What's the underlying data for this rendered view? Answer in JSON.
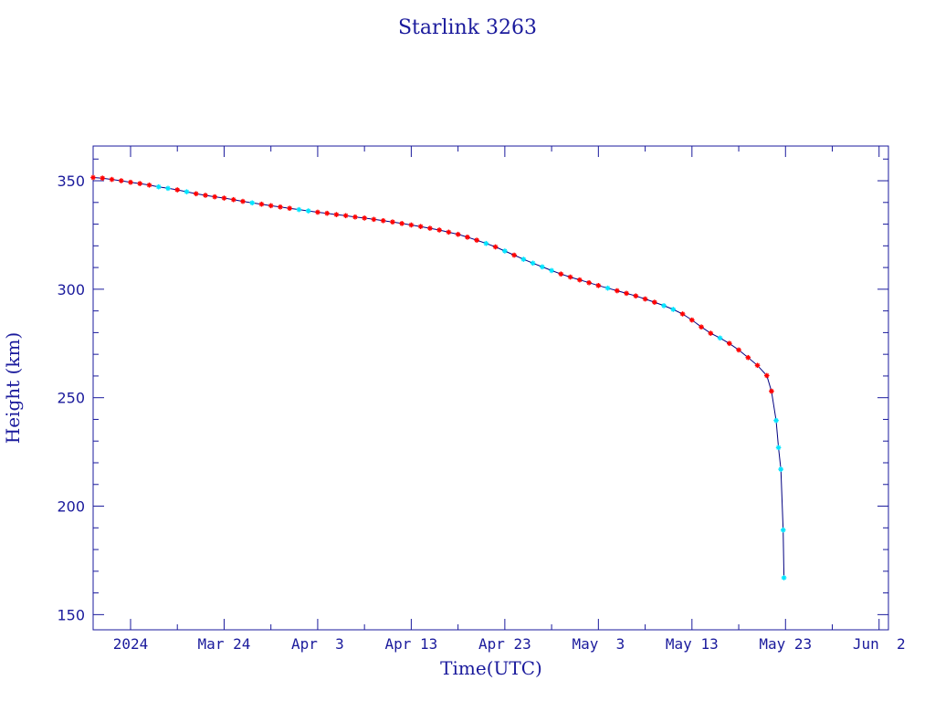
{
  "chart_data": {
    "type": "line",
    "title": "Starlink 3263",
    "xlabel": "Time(UTC)",
    "ylabel": "Height (km)",
    "xlim": [
      "2024-03-10",
      "2024-06-03"
    ],
    "ylim": [
      143,
      366
    ],
    "x_ticks": [
      {
        "date": "2024-03-14",
        "label": "2024"
      },
      {
        "date": "2024-03-24",
        "label": "Mar 24"
      },
      {
        "date": "2024-04-03",
        "label": "Apr  3"
      },
      {
        "date": "2024-04-13",
        "label": "Apr 13"
      },
      {
        "date": "2024-04-23",
        "label": "Apr 23"
      },
      {
        "date": "2024-05-03",
        "label": "May  3"
      },
      {
        "date": "2024-05-13",
        "label": "May 13"
      },
      {
        "date": "2024-05-23",
        "label": "May 23"
      },
      {
        "date": "2024-06-02",
        "label": "Jun  2"
      }
    ],
    "y_ticks": [
      150,
      200,
      250,
      300,
      350
    ],
    "colors": {
      "axis": "#1a1a9c",
      "line": "#000080",
      "red_marker": "#ff0000",
      "cyan_marker": "#00e5ff"
    },
    "series": [
      {
        "values": [
          {
            "x": "2024-03-10",
            "y": 351.5,
            "m": "red"
          },
          {
            "x": "2024-03-11",
            "y": 351.2,
            "m": "red"
          },
          {
            "x": "2024-03-12",
            "y": 350.6,
            "m": "red"
          },
          {
            "x": "2024-03-13",
            "y": 350.0,
            "m": "red"
          },
          {
            "x": "2024-03-14",
            "y": 349.3,
            "m": "red"
          },
          {
            "x": "2024-03-15",
            "y": 348.7,
            "m": "red"
          },
          {
            "x": "2024-03-16",
            "y": 348.0,
            "m": "red"
          },
          {
            "x": "2024-03-17",
            "y": 347.2,
            "m": "cyan"
          },
          {
            "x": "2024-03-18",
            "y": 346.5,
            "m": "cyan"
          },
          {
            "x": "2024-03-19",
            "y": 345.8,
            "m": "red"
          },
          {
            "x": "2024-03-20",
            "y": 344.9,
            "m": "cyan"
          },
          {
            "x": "2024-03-21",
            "y": 344.0,
            "m": "red"
          },
          {
            "x": "2024-03-22",
            "y": 343.3,
            "m": "red"
          },
          {
            "x": "2024-03-23",
            "y": 342.6,
            "m": "red"
          },
          {
            "x": "2024-03-24",
            "y": 342.0,
            "m": "red"
          },
          {
            "x": "2024-03-25",
            "y": 341.3,
            "m": "red"
          },
          {
            "x": "2024-03-26",
            "y": 340.5,
            "m": "red"
          },
          {
            "x": "2024-03-27",
            "y": 339.8,
            "m": "cyan"
          },
          {
            "x": "2024-03-28",
            "y": 339.2,
            "m": "red"
          },
          {
            "x": "2024-03-29",
            "y": 338.5,
            "m": "red"
          },
          {
            "x": "2024-03-30",
            "y": 337.9,
            "m": "red"
          },
          {
            "x": "2024-03-31",
            "y": 337.3,
            "m": "red"
          },
          {
            "x": "2024-04-01",
            "y": 336.7,
            "m": "cyan"
          },
          {
            "x": "2024-04-02",
            "y": 336.1,
            "m": "cyan"
          },
          {
            "x": "2024-04-03",
            "y": 335.5,
            "m": "red"
          },
          {
            "x": "2024-04-04",
            "y": 335.0,
            "m": "red"
          },
          {
            "x": "2024-04-05",
            "y": 334.4,
            "m": "red"
          },
          {
            "x": "2024-04-06",
            "y": 333.9,
            "m": "red"
          },
          {
            "x": "2024-04-07",
            "y": 333.3,
            "m": "red"
          },
          {
            "x": "2024-04-08",
            "y": 332.8,
            "m": "red"
          },
          {
            "x": "2024-04-09",
            "y": 332.2,
            "m": "red"
          },
          {
            "x": "2024-04-10",
            "y": 331.6,
            "m": "red"
          },
          {
            "x": "2024-04-11",
            "y": 331.0,
            "m": "red"
          },
          {
            "x": "2024-04-12",
            "y": 330.3,
            "m": "red"
          },
          {
            "x": "2024-04-13",
            "y": 329.6,
            "m": "red"
          },
          {
            "x": "2024-04-14",
            "y": 328.9,
            "m": "red"
          },
          {
            "x": "2024-04-15",
            "y": 328.1,
            "m": "red"
          },
          {
            "x": "2024-04-16",
            "y": 327.3,
            "m": "red"
          },
          {
            "x": "2024-04-17",
            "y": 326.3,
            "m": "red"
          },
          {
            "x": "2024-04-18",
            "y": 325.3,
            "m": "red"
          },
          {
            "x": "2024-04-19",
            "y": 324.0,
            "m": "red"
          },
          {
            "x": "2024-04-20",
            "y": 322.6,
            "m": "red"
          },
          {
            "x": "2024-04-21",
            "y": 321.1,
            "m": "cyan"
          },
          {
            "x": "2024-04-22",
            "y": 319.5,
            "m": "red"
          },
          {
            "x": "2024-04-23",
            "y": 317.6,
            "m": "cyan"
          },
          {
            "x": "2024-04-24",
            "y": 315.7,
            "m": "red"
          },
          {
            "x": "2024-04-25",
            "y": 313.8,
            "m": "cyan"
          },
          {
            "x": "2024-04-26",
            "y": 312.0,
            "m": "cyan"
          },
          {
            "x": "2024-04-27",
            "y": 310.3,
            "m": "cyan"
          },
          {
            "x": "2024-04-28",
            "y": 308.6,
            "m": "cyan"
          },
          {
            "x": "2024-04-29",
            "y": 307.0,
            "m": "red"
          },
          {
            "x": "2024-04-30",
            "y": 305.6,
            "m": "red"
          },
          {
            "x": "2024-05-01",
            "y": 304.3,
            "m": "red"
          },
          {
            "x": "2024-05-02",
            "y": 303.0,
            "m": "red"
          },
          {
            "x": "2024-05-03",
            "y": 301.7,
            "m": "red"
          },
          {
            "x": "2024-05-04",
            "y": 300.5,
            "m": "cyan"
          },
          {
            "x": "2024-05-05",
            "y": 299.3,
            "m": "red"
          },
          {
            "x": "2024-05-06",
            "y": 298.1,
            "m": "red"
          },
          {
            "x": "2024-05-07",
            "y": 296.9,
            "m": "red"
          },
          {
            "x": "2024-05-08",
            "y": 295.5,
            "m": "red"
          },
          {
            "x": "2024-05-09",
            "y": 294.0,
            "m": "red"
          },
          {
            "x": "2024-05-10",
            "y": 292.4,
            "m": "cyan"
          },
          {
            "x": "2024-05-11",
            "y": 290.7,
            "m": "cyan"
          },
          {
            "x": "2024-05-12",
            "y": 288.6,
            "m": "red"
          },
          {
            "x": "2024-05-13",
            "y": 285.8,
            "m": "red"
          },
          {
            "x": "2024-05-14",
            "y": 282.6,
            "m": "red"
          },
          {
            "x": "2024-05-15",
            "y": 279.7,
            "m": "red"
          },
          {
            "x": "2024-05-16",
            "y": 277.5,
            "m": "cyan"
          },
          {
            "x": "2024-05-17",
            "y": 275.0,
            "m": "red"
          },
          {
            "x": "2024-05-18",
            "y": 272.0,
            "m": "red"
          },
          {
            "x": "2024-05-19",
            "y": 268.5,
            "m": "red"
          },
          {
            "x": "2024-05-20",
            "y": 264.9,
            "m": "red"
          },
          {
            "x": "2024-05-21",
            "y": 260.2,
            "m": "red"
          },
          {
            "x": "2024-05-21T12:00",
            "y": 253.0,
            "m": "red"
          },
          {
            "x": "2024-05-22",
            "y": 239.5,
            "m": "cyan"
          },
          {
            "x": "2024-05-22T06:00",
            "y": 227.0,
            "m": "cyan"
          },
          {
            "x": "2024-05-22T12:00",
            "y": 217.0,
            "m": "cyan"
          },
          {
            "x": "2024-05-22T18:00",
            "y": 189.0,
            "m": "cyan"
          },
          {
            "x": "2024-05-22T20:00",
            "y": 167.0,
            "m": "cyan"
          }
        ]
      }
    ]
  }
}
